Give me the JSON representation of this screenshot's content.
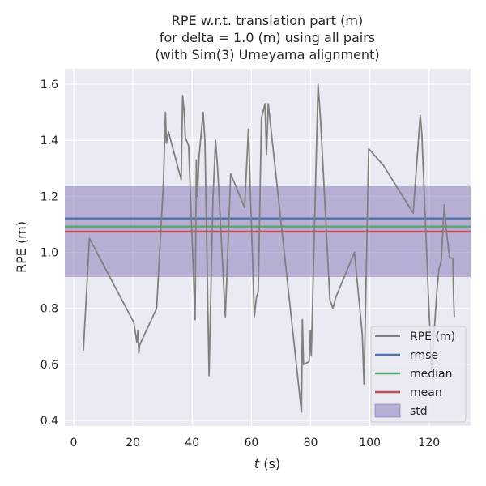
{
  "chart_data": {
    "type": "line",
    "title_lines": [
      "RPE w.r.t. translation part (m)",
      "for delta = 1.0 (m) using all pairs",
      "(with Sim(3) Umeyama alignment)"
    ],
    "xlabel_italic": "t",
    "xlabel_rest": " (s)",
    "ylabel": "RPE (m)",
    "xlim": [
      -3,
      134
    ],
    "ylim": [
      0.38,
      1.655
    ],
    "xticks": [
      0,
      20,
      40,
      60,
      80,
      100,
      120
    ],
    "yticks": [
      0.4,
      0.6,
      0.8,
      1.0,
      1.2,
      1.4,
      1.6
    ],
    "xtick_labels": [
      "0",
      "20",
      "40",
      "60",
      "80",
      "100",
      "120"
    ],
    "ytick_labels": [
      "0.4",
      "0.6",
      "0.8",
      "1.0",
      "1.2",
      "1.4",
      "1.6"
    ],
    "grid": true,
    "legend_position": "lower-right",
    "series": [
      {
        "name": "RPE (m)",
        "color": "#808080",
        "points": [
          [
            3.3,
            0.65
          ],
          [
            5.3,
            1.05
          ],
          [
            20.3,
            0.75
          ],
          [
            21.3,
            0.68
          ],
          [
            21.7,
            0.72
          ],
          [
            22.0,
            0.64
          ],
          [
            22.3,
            0.67
          ],
          [
            28.0,
            0.8
          ],
          [
            30.3,
            1.25
          ],
          [
            31.0,
            1.5
          ],
          [
            31.3,
            1.39
          ],
          [
            32.0,
            1.43
          ],
          [
            36.3,
            1.26
          ],
          [
            36.8,
            1.56
          ],
          [
            37.3,
            1.5
          ],
          [
            37.7,
            1.41
          ],
          [
            38.8,
            1.38
          ],
          [
            41.0,
            0.76
          ],
          [
            41.4,
            1.33
          ],
          [
            41.8,
            1.2
          ],
          [
            42.3,
            1.34
          ],
          [
            43.7,
            1.5
          ],
          [
            44.3,
            1.4
          ],
          [
            45.7,
            0.56
          ],
          [
            47.0,
            1.18
          ],
          [
            47.9,
            1.4
          ],
          [
            48.6,
            1.3
          ],
          [
            51.2,
            0.77
          ],
          [
            53.0,
            1.28
          ],
          [
            57.7,
            1.16
          ],
          [
            59.0,
            1.44
          ],
          [
            60.3,
            1.0
          ],
          [
            61.0,
            0.77
          ],
          [
            61.7,
            0.84
          ],
          [
            62.3,
            0.86
          ],
          [
            63.4,
            1.48
          ],
          [
            64.6,
            1.53
          ],
          [
            65.1,
            1.35
          ],
          [
            65.7,
            1.53
          ],
          [
            76.9,
            0.43
          ],
          [
            77.2,
            0.76
          ],
          [
            77.6,
            0.6
          ],
          [
            79.5,
            0.61
          ],
          [
            79.9,
            0.72
          ],
          [
            80.2,
            0.63
          ],
          [
            82.5,
            1.6
          ],
          [
            83.4,
            1.46
          ],
          [
            86.5,
            0.83
          ],
          [
            87.5,
            0.8
          ],
          [
            88.5,
            0.84
          ],
          [
            94.8,
            1.0
          ],
          [
            97.4,
            0.71
          ],
          [
            98.0,
            0.53
          ],
          [
            99.6,
            1.37
          ],
          [
            104.6,
            1.31
          ],
          [
            114.6,
            1.14
          ],
          [
            117.0,
            1.49
          ],
          [
            117.5,
            1.43
          ],
          [
            120.8,
            0.58
          ],
          [
            121.5,
            0.68
          ],
          [
            122.6,
            0.86
          ],
          [
            123.3,
            0.94
          ],
          [
            124.1,
            0.97
          ],
          [
            125.1,
            1.17
          ],
          [
            125.8,
            1.08
          ],
          [
            126.9,
            0.98
          ],
          [
            128.0,
            0.98
          ],
          [
            128.2,
            0.86
          ],
          [
            128.5,
            0.77
          ]
        ]
      }
    ],
    "stats": [
      {
        "name": "rmse",
        "value": 1.121,
        "color": "#4c72b0"
      },
      {
        "name": "median",
        "value": 1.092,
        "color": "#55a868"
      },
      {
        "name": "mean",
        "value": 1.074,
        "color": "#c44e52"
      }
    ],
    "std_band": {
      "name": "std",
      "low": 0.912,
      "high": 1.236,
      "color": "#8172b3"
    }
  }
}
